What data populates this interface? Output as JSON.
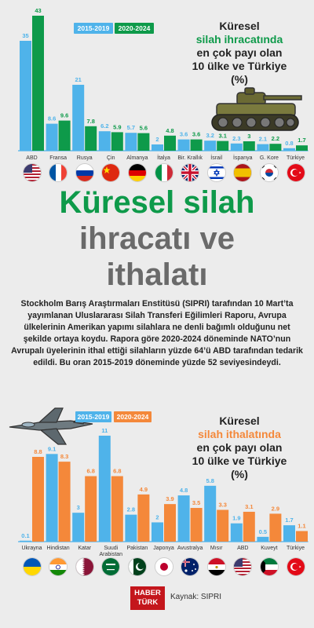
{
  "colors": {
    "c1": "#4fb3ea",
    "c2": "#0e9a4a",
    "c3": "#f4883a",
    "bg": "#ececec"
  },
  "chart_data": [
    {
      "type": "bar",
      "categories": [
        "ABD",
        "Fransa",
        "Rusya",
        "Çin",
        "Almanya",
        "İtalya",
        "Bir. Krallık",
        "İsrail",
        "İspanya",
        "G. Kore",
        "Türkiye"
      ],
      "series": [
        {
          "name": "2015-2019",
          "values": [
            35,
            8.6,
            21,
            6.2,
            5.7,
            2,
            3.6,
            3.2,
            2.3,
            2.1,
            0.8
          ]
        },
        {
          "name": "2020-2024",
          "values": [
            43,
            9.6,
            7.8,
            5.9,
            5.6,
            4.8,
            3.6,
            3.1,
            3,
            2.2,
            1.7
          ]
        }
      ],
      "value_labels": {
        "2015-2019": [
          "35",
          "8.6",
          "21",
          "6.2",
          "5.7",
          "2",
          "3.6",
          "3.2",
          "2.3",
          "2.1",
          "0.8"
        ],
        "2020-2024": [
          "43",
          "9.6",
          "7.8",
          "5.9",
          "5.6",
          "4.8",
          "3.6",
          "3.1",
          "3",
          "2.2",
          "1.7"
        ]
      },
      "title_lines": [
        "Küresel",
        "silah ihracatında",
        "en çok payı olan",
        "10 ülke ve Türkiye",
        "(%)"
      ],
      "ylim": [
        0,
        43
      ]
    },
    {
      "type": "bar",
      "categories": [
        "Ukrayna",
        "Hindistan",
        "Katar",
        "Suudi Arabistan",
        "Pakistan",
        "Japonya",
        "Avustralya",
        "Mısır",
        "ABD",
        "Kuveyt",
        "Türkiye"
      ],
      "category_label_lines": [
        [
          "Ukrayna"
        ],
        [
          "Hindistan"
        ],
        [
          "Katar"
        ],
        [
          "Suudi",
          "Arabistan"
        ],
        [
          "Pakistan"
        ],
        [
          "Japonya"
        ],
        [
          "Avustralya"
        ],
        [
          "Mısır"
        ],
        [
          "ABD"
        ],
        [
          "Kuveyt"
        ],
        [
          "Türkiye"
        ]
      ],
      "series": [
        {
          "name": "2015-2019",
          "values": [
            0.1,
            9.1,
            3,
            11,
            2.8,
            2,
            4.8,
            5.8,
            1.9,
            0.5,
            1.7
          ]
        },
        {
          "name": "2020-2024",
          "values": [
            8.8,
            8.3,
            6.8,
            6.8,
            4.9,
            3.9,
            3.5,
            3.3,
            3.1,
            2.9,
            1.1
          ]
        }
      ],
      "value_labels": {
        "2015-2019": [
          "0.1",
          "9.1",
          "3",
          "11",
          "2.8",
          "2",
          "4.8",
          "5.8",
          "1.9",
          "0.5",
          "1.7"
        ],
        "2020-2024": [
          "8.8",
          "8.3",
          "6.8",
          "6.8",
          "4.9",
          "3.9",
          "3.5",
          "3.3",
          "3.1",
          "2.9",
          "1.1"
        ]
      },
      "title_lines": [
        "Küresel",
        "silah ithalatında",
        "en çok payı olan",
        "10 ülke ve Türkiye",
        "(%)"
      ],
      "ylim": [
        0,
        11
      ]
    }
  ],
  "export_chart": {
    "legend": [
      "2015-2019",
      "2020-2024"
    ]
  },
  "import_chart": {
    "legend": [
      "2015-2019",
      "2020-2024"
    ]
  },
  "headline": {
    "line1": "Küresel silah",
    "line2": "ihracatı ve",
    "line3": "ithalatı"
  },
  "body_text": "Stockholm Barış Araştırmaları Enstitüsü (SIPRI) tarafından 10 Mart’ta yayımlanan Uluslararası Silah Transferi Eğilimleri Raporu, Avrupa ülkelerinin Amerikan yapımı silahlara ne denli bağımlı olduğunu net şekilde ortaya koydu. Rapora göre 2020-2024 döneminde NATO’nun Avrupalı üyelerinin ithal ettiği silahların yüzde 64’ü ABD tarafından tedarik edildi. Bu oran 2015-2019 döneminde yüzde 52 seviyesindeydi.",
  "footer": {
    "logo_line1": "HABER",
    "logo_line2": "TÜRK",
    "source": "Kaynak: SIPRI"
  }
}
